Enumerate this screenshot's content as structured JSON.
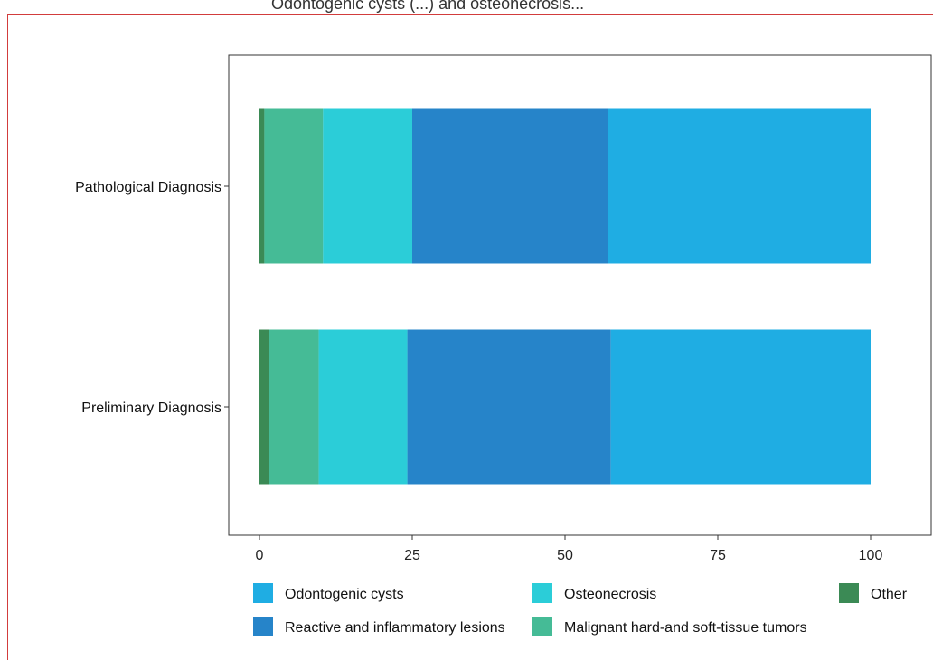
{
  "header_fragment": "   Odontogenic cysts (...) and osteonecrosis...",
  "chart_data": {
    "type": "bar",
    "orientation": "horizontal",
    "stacked": true,
    "categories": [
      "Pathological Diagnosis",
      "Preliminary Diagnosis"
    ],
    "series": [
      {
        "name": "Other",
        "color": "#3b8a55",
        "values": [
          0.8,
          1.5
        ]
      },
      {
        "name": "Malignant hard-and soft-tissue tumors",
        "color": "#45bb96",
        "values": [
          9.6,
          8.2
        ]
      },
      {
        "name": "Osteonecrosis",
        "color": "#2bcdd8",
        "values": [
          14.6,
          14.5
        ]
      },
      {
        "name": "Reactive and inflammatory lesions",
        "color": "#2684c9",
        "values": [
          32.0,
          33.3
        ]
      },
      {
        "name": "Odontogenic cysts",
        "color": "#1fade3",
        "values": [
          43.0,
          42.5
        ]
      }
    ],
    "x_ticks": [
      0,
      25,
      50,
      75,
      100
    ],
    "xlim": [
      -5,
      110
    ],
    "legend_position": "bottom",
    "legend_order": [
      "Odontogenic cysts",
      "Osteonecrosis",
      "Other",
      "Reactive and inflammatory lesions",
      "Malignant hard-and soft-tissue tumors"
    ],
    "grid": false
  }
}
